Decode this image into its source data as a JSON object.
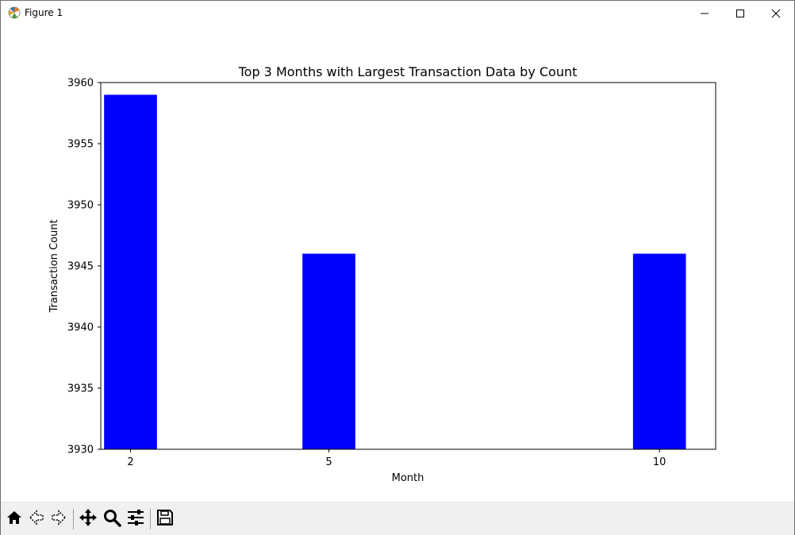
{
  "window": {
    "title": "Figure 1",
    "icons": {
      "app": "matplotlib-icon",
      "minimize": "minimize-icon",
      "maximize": "maximize-icon",
      "close": "close-icon"
    }
  },
  "toolbar": {
    "tools": [
      "home-icon",
      "back-arrow-icon",
      "forward-arrow-icon",
      "pan-icon",
      "zoom-icon",
      "configure-subplots-icon",
      "save-icon"
    ]
  },
  "chart_data": {
    "type": "bar",
    "title": "Top 3 Months with Largest Transaction Data by Count",
    "xlabel": "Month",
    "ylabel": "Transaction Count",
    "x": [
      2,
      5,
      10
    ],
    "values": [
      3959,
      3946,
      3946
    ],
    "xticks": [
      "2",
      "5",
      "10"
    ],
    "yticks": [
      "3930",
      "3935",
      "3940",
      "3945",
      "3950",
      "3955",
      "3960"
    ],
    "ylim": [
      3930,
      3960
    ],
    "xlim": [
      1.55,
      10.85
    ],
    "bar_width": 0.8,
    "bar_color": "#0000ff",
    "grid": false
  }
}
